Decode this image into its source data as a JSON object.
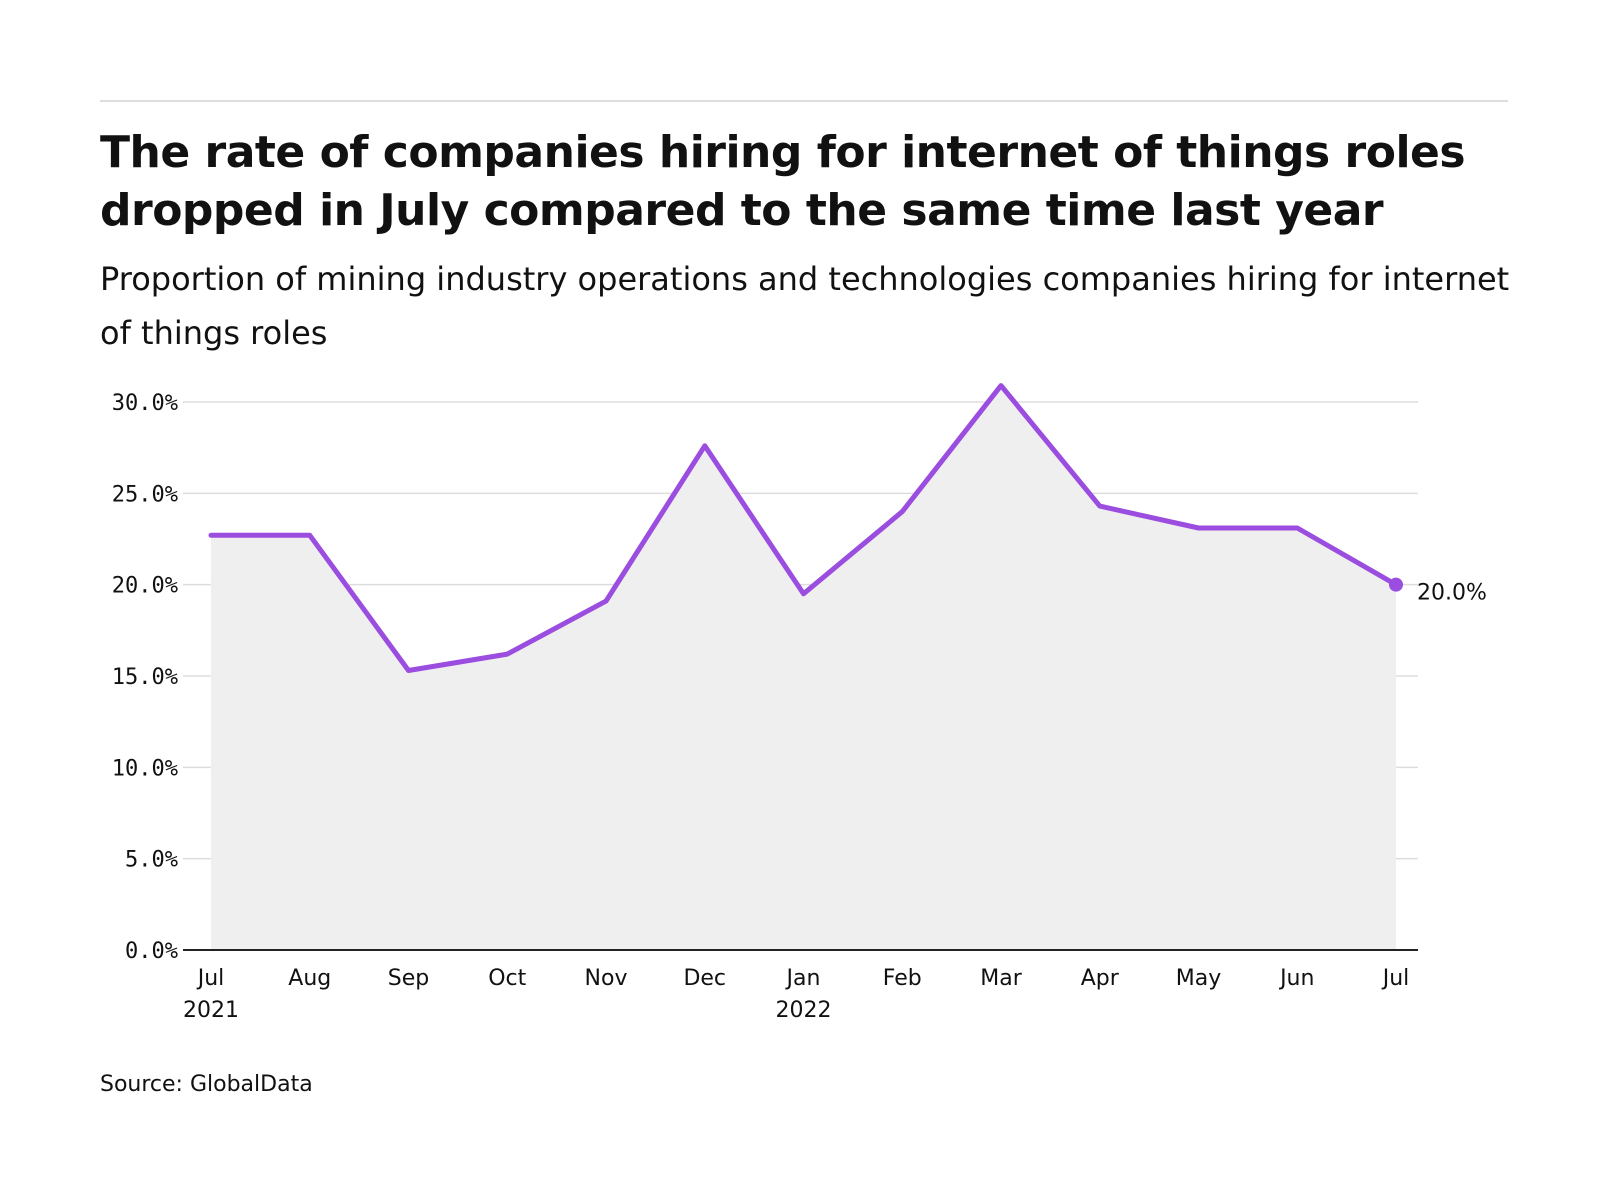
{
  "header": {
    "title": "The rate of companies hiring for internet of things roles dropped in July compared to the same time last year",
    "subtitle": "Proportion of mining industry operations and technologies companies hiring for internet of things roles"
  },
  "source": "Source: GlobalData",
  "colors": {
    "line": "#9b4ddf",
    "area": "#efefef",
    "grid": "#dddddd",
    "axis": "#222222"
  },
  "chart_data": {
    "type": "area",
    "title": "The rate of companies hiring for internet of things roles dropped in July compared to the same time last year",
    "xlabel": "",
    "ylabel": "",
    "categories": [
      "Jul\n2021",
      "Aug",
      "Sep",
      "Oct",
      "Nov",
      "Dec",
      "Jan\n2022",
      "Feb",
      "Mar",
      "Apr",
      "May",
      "Jun",
      "Jul"
    ],
    "series": [
      {
        "name": "Proportion of companies hiring for internet of things roles",
        "values": [
          22.7,
          22.7,
          15.3,
          16.2,
          19.1,
          27.6,
          19.5,
          24.0,
          30.9,
          24.3,
          23.1,
          23.1,
          20.0
        ]
      }
    ],
    "y_ticks": [
      0,
      5,
      10,
      15,
      20,
      25,
      30
    ],
    "y_tick_labels": [
      "0.0%",
      "5.0%",
      "10.0%",
      "15.0%",
      "20.0%",
      "25.0%",
      "30.0%"
    ],
    "ylim": [
      0,
      30
    ],
    "grid": true,
    "end_label": "20.0%"
  }
}
